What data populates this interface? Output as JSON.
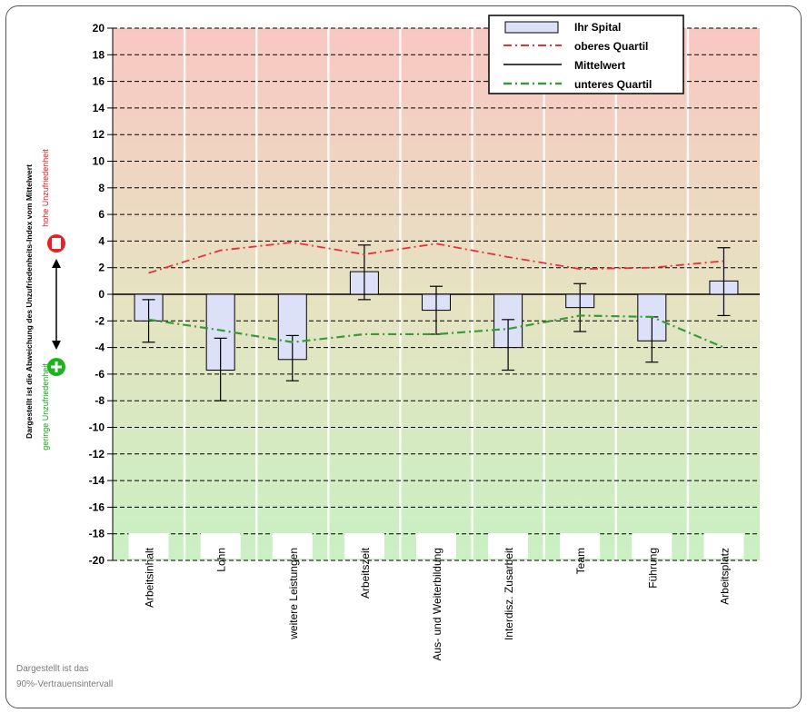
{
  "chart_data": {
    "type": "bar",
    "ylabel": "Dargestellt ist die Abweichung des Unzufriedenheits-Index vom Mittelwert",
    "ylim": [
      -20,
      20
    ],
    "yticks": [
      20,
      18,
      16,
      14,
      12,
      10,
      8,
      6,
      4,
      2,
      0,
      -2,
      -4,
      -6,
      -8,
      -10,
      -12,
      -14,
      -16,
      -18,
      -20
    ],
    "grid": true,
    "legend_position": "top-right",
    "categories": [
      "Arbeitsinhalt",
      "Lohn",
      "weitere Leistungen",
      "Arbeitszeit",
      "Aus- und Weiterbildung",
      "Interdisz. Zusarbeit",
      "Team",
      "Führung",
      "Arbeitsplatz"
    ],
    "series": [
      {
        "name": "Ihr Spital",
        "values": [
          -2.0,
          -5.7,
          -4.9,
          1.7,
          -1.2,
          -4.0,
          -1.0,
          -3.5,
          1.0
        ],
        "error_low": [
          -3.6,
          -8.0,
          -6.5,
          -0.4,
          -3.0,
          -5.7,
          -2.8,
          -5.1,
          -1.6
        ],
        "error_high": [
          -0.4,
          -3.3,
          -3.1,
          3.7,
          0.6,
          -1.9,
          0.8,
          -1.7,
          3.5
        ]
      },
      {
        "name": "oberes Quartil",
        "values": [
          1.6,
          3.3,
          3.9,
          3.0,
          3.8,
          2.8,
          1.9,
          2.0,
          2.5
        ]
      },
      {
        "name": "Mittelwert",
        "values": [
          0,
          0,
          0,
          0,
          0,
          0,
          0,
          0,
          0
        ]
      },
      {
        "name": "unteres Quartil",
        "values": [
          -1.9,
          -2.7,
          -3.6,
          -3.0,
          -3.0,
          -2.6,
          -1.6,
          -1.7,
          -4.0
        ]
      }
    ],
    "colors": {
      "bar_fill": "#dde1f8",
      "upper_quartile": "#e8303a",
      "mean": "#000000",
      "lower_quartile": "#3a9a3a",
      "background_top": "#f9c7c2",
      "background_bottom": "#c9f0c3"
    }
  },
  "side_labels": {
    "high": "hohe Unzufriedenheit",
    "low": "geringe Unzufriedenheit",
    "high_color": "#e0202a",
    "low_color": "#17a317"
  },
  "note": {
    "line1": "Dargestellt ist das",
    "line2": "90%-Vertrauensintervall"
  }
}
